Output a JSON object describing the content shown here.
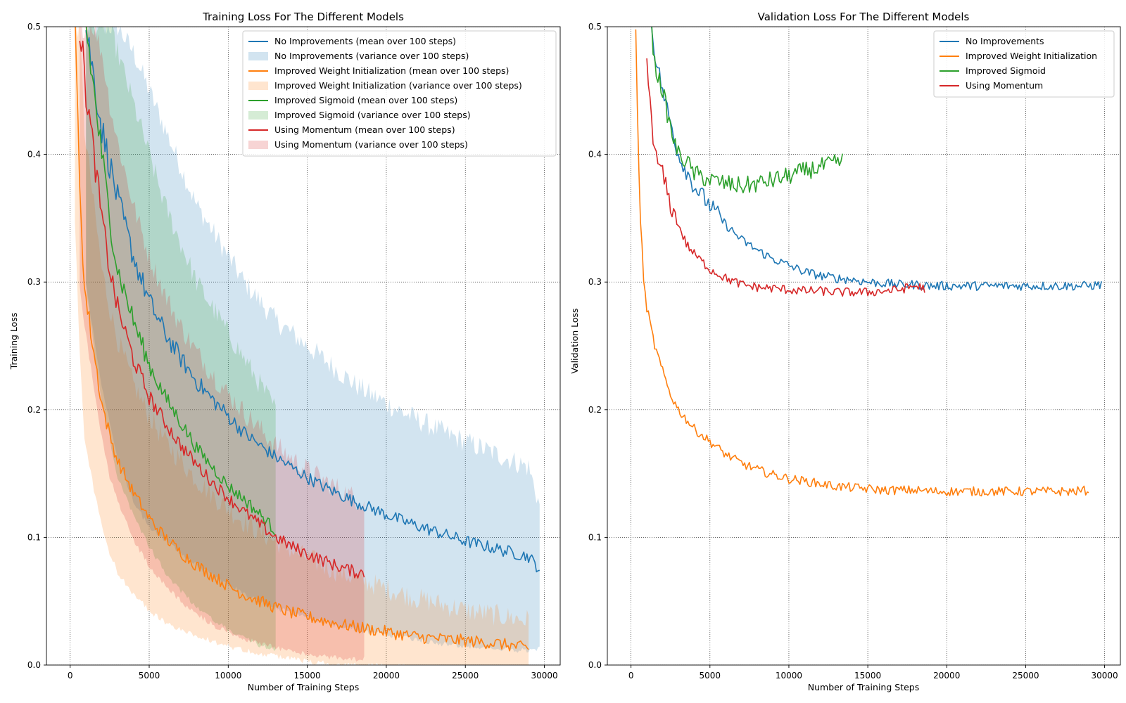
{
  "chart_data": [
    {
      "type": "line",
      "title": "Training Loss For The Different Models",
      "xlabel": "Number of Training Steps",
      "ylabel": "Training Loss",
      "xlim": [
        -1500,
        31000
      ],
      "ylim": [
        0.0,
        0.5
      ],
      "xticks": [
        0,
        5000,
        10000,
        15000,
        20000,
        25000,
        30000
      ],
      "yticks": [
        0.0,
        0.1,
        0.2,
        0.3,
        0.4,
        0.5
      ],
      "xtick_labels": [
        "0",
        "5000",
        "10000",
        "15000",
        "20000",
        "25000",
        "30000"
      ],
      "ytick_labels": [
        "0.0",
        "0.1",
        "0.2",
        "0.3",
        "0.4",
        "0.5"
      ],
      "grid": true,
      "grid_style": "dotted",
      "legend_placement": "top-right",
      "legend": [
        "No Improvements (mean over 100 steps)",
        "No Improvements (variance over 100 steps)",
        "Improved Weight Initialization (mean over 100 steps)",
        "Improved Weight Initialization (variance over 100 steps)",
        "Improved Sigmoid (mean over 100 steps)",
        "Improved Sigmoid (variance over 100 steps)",
        "Using Momentum (mean over 100 steps)",
        "Using Momentum (variance over 100 steps)"
      ],
      "series": [
        {
          "name": "No Improvements",
          "color": "#1f77b4",
          "x": [
            1000,
            2000,
            3000,
            4000,
            5000,
            6000,
            7000,
            8000,
            9000,
            10000,
            11000,
            12000,
            13000,
            14000,
            15000,
            16000,
            17000,
            18000,
            19000,
            20000,
            21000,
            22000,
            23000,
            24000,
            25000,
            26000,
            27000,
            28000,
            29000,
            29700
          ],
          "mean": [
            0.5,
            0.42,
            0.365,
            0.32,
            0.285,
            0.26,
            0.24,
            0.222,
            0.208,
            0.195,
            0.182,
            0.172,
            0.163,
            0.155,
            0.147,
            0.14,
            0.134,
            0.128,
            0.123,
            0.118,
            0.113,
            0.109,
            0.105,
            0.101,
            0.097,
            0.094,
            0.091,
            0.088,
            0.085,
            0.075
          ],
          "lower": [
            0.3,
            0.22,
            0.165,
            0.13,
            0.11,
            0.1,
            0.09,
            0.08,
            0.072,
            0.065,
            0.058,
            0.052,
            0.047,
            0.043,
            0.039,
            0.036,
            0.033,
            0.03,
            0.028,
            0.026,
            0.024,
            0.022,
            0.02,
            0.018,
            0.017,
            0.016,
            0.015,
            0.014,
            0.013,
            0.015
          ],
          "upper": [
            0.5,
            0.5,
            0.5,
            0.48,
            0.45,
            0.42,
            0.39,
            0.36,
            0.34,
            0.32,
            0.3,
            0.285,
            0.27,
            0.26,
            0.25,
            0.24,
            0.23,
            0.22,
            0.212,
            0.205,
            0.198,
            0.192,
            0.186,
            0.18,
            0.175,
            0.17,
            0.165,
            0.16,
            0.155,
            0.125
          ]
        },
        {
          "name": "Improved Weight Initialization",
          "color": "#ff7f0e",
          "x": [
            300,
            600,
            900,
            1500,
            2000,
            2500,
            3000,
            4000,
            5000,
            6000,
            7000,
            8000,
            9000,
            10000,
            11000,
            12000,
            13000,
            14000,
            15000,
            16000,
            17000,
            18000,
            19000,
            20000,
            21000,
            22000,
            23000,
            24000,
            25000,
            26000,
            27000,
            28000,
            29000
          ],
          "mean": [
            0.5,
            0.38,
            0.295,
            0.245,
            0.205,
            0.18,
            0.16,
            0.135,
            0.115,
            0.1,
            0.088,
            0.078,
            0.07,
            0.062,
            0.055,
            0.05,
            0.045,
            0.041,
            0.038,
            0.035,
            0.032,
            0.03,
            0.028,
            0.026,
            0.024,
            0.022,
            0.021,
            0.02,
            0.019,
            0.018,
            0.017,
            0.015,
            0.013
          ],
          "lower": [
            0.35,
            0.25,
            0.18,
            0.14,
            0.11,
            0.09,
            0.075,
            0.058,
            0.045,
            0.036,
            0.03,
            0.025,
            0.021,
            0.017,
            0.014,
            0.011,
            0.009,
            0.007,
            0.005,
            0.004,
            0.003,
            0.002,
            0.002,
            0.001,
            0.001,
            0.001,
            0.0,
            0.0,
            0.0,
            0.0,
            0.0,
            0.0,
            0.0
          ],
          "upper": [
            0.5,
            0.5,
            0.42,
            0.36,
            0.31,
            0.28,
            0.255,
            0.22,
            0.195,
            0.175,
            0.16,
            0.145,
            0.133,
            0.122,
            0.112,
            0.104,
            0.097,
            0.09,
            0.084,
            0.078,
            0.073,
            0.068,
            0.064,
            0.06,
            0.056,
            0.052,
            0.049,
            0.046,
            0.043,
            0.041,
            0.039,
            0.037,
            0.035
          ]
        },
        {
          "name": "Improved Sigmoid",
          "color": "#2ca02c",
          "x": [
            1000,
            1500,
            2000,
            2500,
            3000,
            4000,
            5000,
            6000,
            7000,
            8000,
            9000,
            10000,
            11000,
            12000,
            13000
          ],
          "mean": [
            0.5,
            0.45,
            0.4,
            0.35,
            0.31,
            0.27,
            0.235,
            0.21,
            0.19,
            0.17,
            0.155,
            0.14,
            0.13,
            0.118,
            0.105
          ],
          "lower": [
            0.3,
            0.25,
            0.21,
            0.18,
            0.15,
            0.12,
            0.095,
            0.075,
            0.06,
            0.048,
            0.038,
            0.03,
            0.024,
            0.018,
            0.014
          ],
          "upper": [
            0.5,
            0.5,
            0.5,
            0.5,
            0.48,
            0.44,
            0.4,
            0.36,
            0.33,
            0.3,
            0.28,
            0.26,
            0.24,
            0.22,
            0.2
          ]
        },
        {
          "name": "Using Momentum",
          "color": "#d62728",
          "x": [
            600,
            1000,
            1500,
            2000,
            2500,
            3000,
            4000,
            5000,
            6000,
            7000,
            8000,
            9000,
            10000,
            11000,
            12000,
            13000,
            14000,
            15000,
            16000,
            17000,
            18000,
            18600
          ],
          "mean": [
            0.5,
            0.45,
            0.4,
            0.35,
            0.31,
            0.28,
            0.24,
            0.21,
            0.19,
            0.172,
            0.157,
            0.143,
            0.131,
            0.12,
            0.11,
            0.1,
            0.093,
            0.087,
            0.082,
            0.077,
            0.073,
            0.072
          ],
          "lower": [
            0.3,
            0.26,
            0.22,
            0.18,
            0.15,
            0.13,
            0.1,
            0.08,
            0.065,
            0.052,
            0.042,
            0.034,
            0.028,
            0.023,
            0.019,
            0.016,
            0.013,
            0.011,
            0.009,
            0.008,
            0.007,
            0.007
          ],
          "upper": [
            0.5,
            0.5,
            0.5,
            0.48,
            0.44,
            0.41,
            0.36,
            0.32,
            0.29,
            0.265,
            0.245,
            0.228,
            0.212,
            0.198,
            0.185,
            0.172,
            0.162,
            0.153,
            0.145,
            0.138,
            0.131,
            0.128
          ]
        }
      ]
    },
    {
      "type": "line",
      "title": "Validation Loss For The Different Models",
      "xlabel": "Number of Training Steps",
      "ylabel": "Validation Loss",
      "xlim": [
        -1500,
        31000
      ],
      "ylim": [
        0.0,
        0.5
      ],
      "xticks": [
        0,
        5000,
        10000,
        15000,
        20000,
        25000,
        30000
      ],
      "yticks": [
        0.0,
        0.1,
        0.2,
        0.3,
        0.4,
        0.5
      ],
      "xtick_labels": [
        "0",
        "5000",
        "10000",
        "15000",
        "20000",
        "25000",
        "30000"
      ],
      "ytick_labels": [
        "0.0",
        "0.1",
        "0.2",
        "0.3",
        "0.4",
        "0.5"
      ],
      "grid": true,
      "grid_style": "dotted",
      "legend_placement": "top-right",
      "legend": [
        "No Improvements",
        "Improved Weight Initialization",
        "Improved Sigmoid",
        "Using Momentum"
      ],
      "series": [
        {
          "name": "No Improvements",
          "color": "#1f77b4",
          "x": [
            1300,
            1500,
            2000,
            2500,
            3000,
            4000,
            5000,
            6000,
            7000,
            8000,
            9000,
            10000,
            11000,
            12000,
            13000,
            14000,
            15000,
            16000,
            17000,
            18000,
            19000,
            20000,
            21000,
            22000,
            23000,
            24000,
            25000,
            26000,
            27000,
            28000,
            29000,
            29800
          ],
          "values": [
            0.5,
            0.48,
            0.45,
            0.425,
            0.4,
            0.375,
            0.36,
            0.345,
            0.333,
            0.325,
            0.318,
            0.313,
            0.308,
            0.305,
            0.303,
            0.302,
            0.3,
            0.299,
            0.298,
            0.298,
            0.297,
            0.297,
            0.297,
            0.297,
            0.297,
            0.297,
            0.297,
            0.297,
            0.297,
            0.297,
            0.297,
            0.298
          ]
        },
        {
          "name": "Improved Weight Initialization",
          "color": "#ff7f0e",
          "x": [
            300,
            500,
            800,
            1000,
            1500,
            2000,
            2500,
            3000,
            4000,
            5000,
            6000,
            7000,
            8000,
            9000,
            10000,
            11000,
            12000,
            13000,
            14000,
            15000,
            16000,
            17000,
            18000,
            19000,
            20000,
            21000,
            22000,
            23000,
            24000,
            25000,
            26000,
            27000,
            28000,
            29000
          ],
          "values": [
            0.5,
            0.38,
            0.3,
            0.28,
            0.25,
            0.23,
            0.212,
            0.2,
            0.185,
            0.175,
            0.165,
            0.158,
            0.153,
            0.149,
            0.146,
            0.144,
            0.142,
            0.14,
            0.139,
            0.138,
            0.137,
            0.137,
            0.137,
            0.136,
            0.136,
            0.136,
            0.136,
            0.136,
            0.136,
            0.136,
            0.136,
            0.136,
            0.136,
            0.137
          ]
        },
        {
          "name": "Improved Sigmoid",
          "color": "#2ca02c",
          "x": [
            1300,
            1500,
            2000,
            2500,
            3000,
            3500,
            4000,
            5000,
            6000,
            7000,
            8000,
            9000,
            10000,
            11000,
            12000,
            13000,
            13400
          ],
          "values": [
            0.5,
            0.47,
            0.45,
            0.42,
            0.4,
            0.395,
            0.385,
            0.38,
            0.377,
            0.375,
            0.377,
            0.38,
            0.383,
            0.387,
            0.39,
            0.393,
            0.395
          ]
        },
        {
          "name": "Using Momentum",
          "color": "#d62728",
          "x": [
            1000,
            1300,
            1500,
            2000,
            2500,
            3000,
            3500,
            4000,
            5000,
            6000,
            7000,
            8000,
            9000,
            10000,
            11000,
            12000,
            13000,
            14000,
            15000,
            16000,
            17000,
            18000,
            18600
          ],
          "values": [
            0.47,
            0.43,
            0.4,
            0.385,
            0.36,
            0.345,
            0.33,
            0.322,
            0.31,
            0.303,
            0.298,
            0.296,
            0.295,
            0.294,
            0.293,
            0.293,
            0.292,
            0.292,
            0.292,
            0.293,
            0.294,
            0.297,
            0.295
          ]
        }
      ]
    }
  ]
}
